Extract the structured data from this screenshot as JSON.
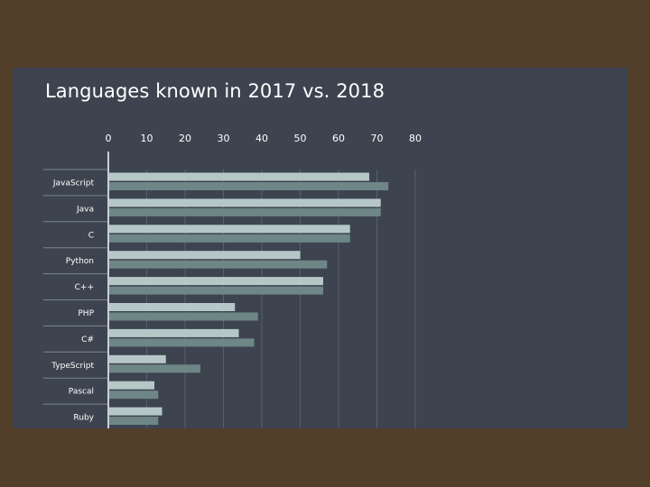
{
  "chart_data": {
    "type": "bar",
    "orientation": "horizontal",
    "title": "Languages known in 2017 vs. 2018",
    "xlabel": "",
    "ylabel": "",
    "xlim": [
      0,
      80
    ],
    "x_ticks": [
      0,
      10,
      20,
      30,
      40,
      50,
      60,
      70,
      80
    ],
    "grid": true,
    "legend": "none",
    "categories": [
      "JavaScript",
      "Java",
      "C",
      "Python",
      "C++",
      "PHP",
      "C#",
      "TypeScript",
      "Pascal",
      "Ruby"
    ],
    "series": [
      {
        "values": [
          68,
          71,
          63,
          50,
          56,
          33,
          34,
          15,
          12,
          14
        ],
        "color": "#b6c7c7"
      },
      {
        "values": [
          73,
          71,
          63,
          57,
          56,
          39,
          38,
          24,
          13,
          13
        ],
        "color": "#6e8686"
      }
    ]
  }
}
